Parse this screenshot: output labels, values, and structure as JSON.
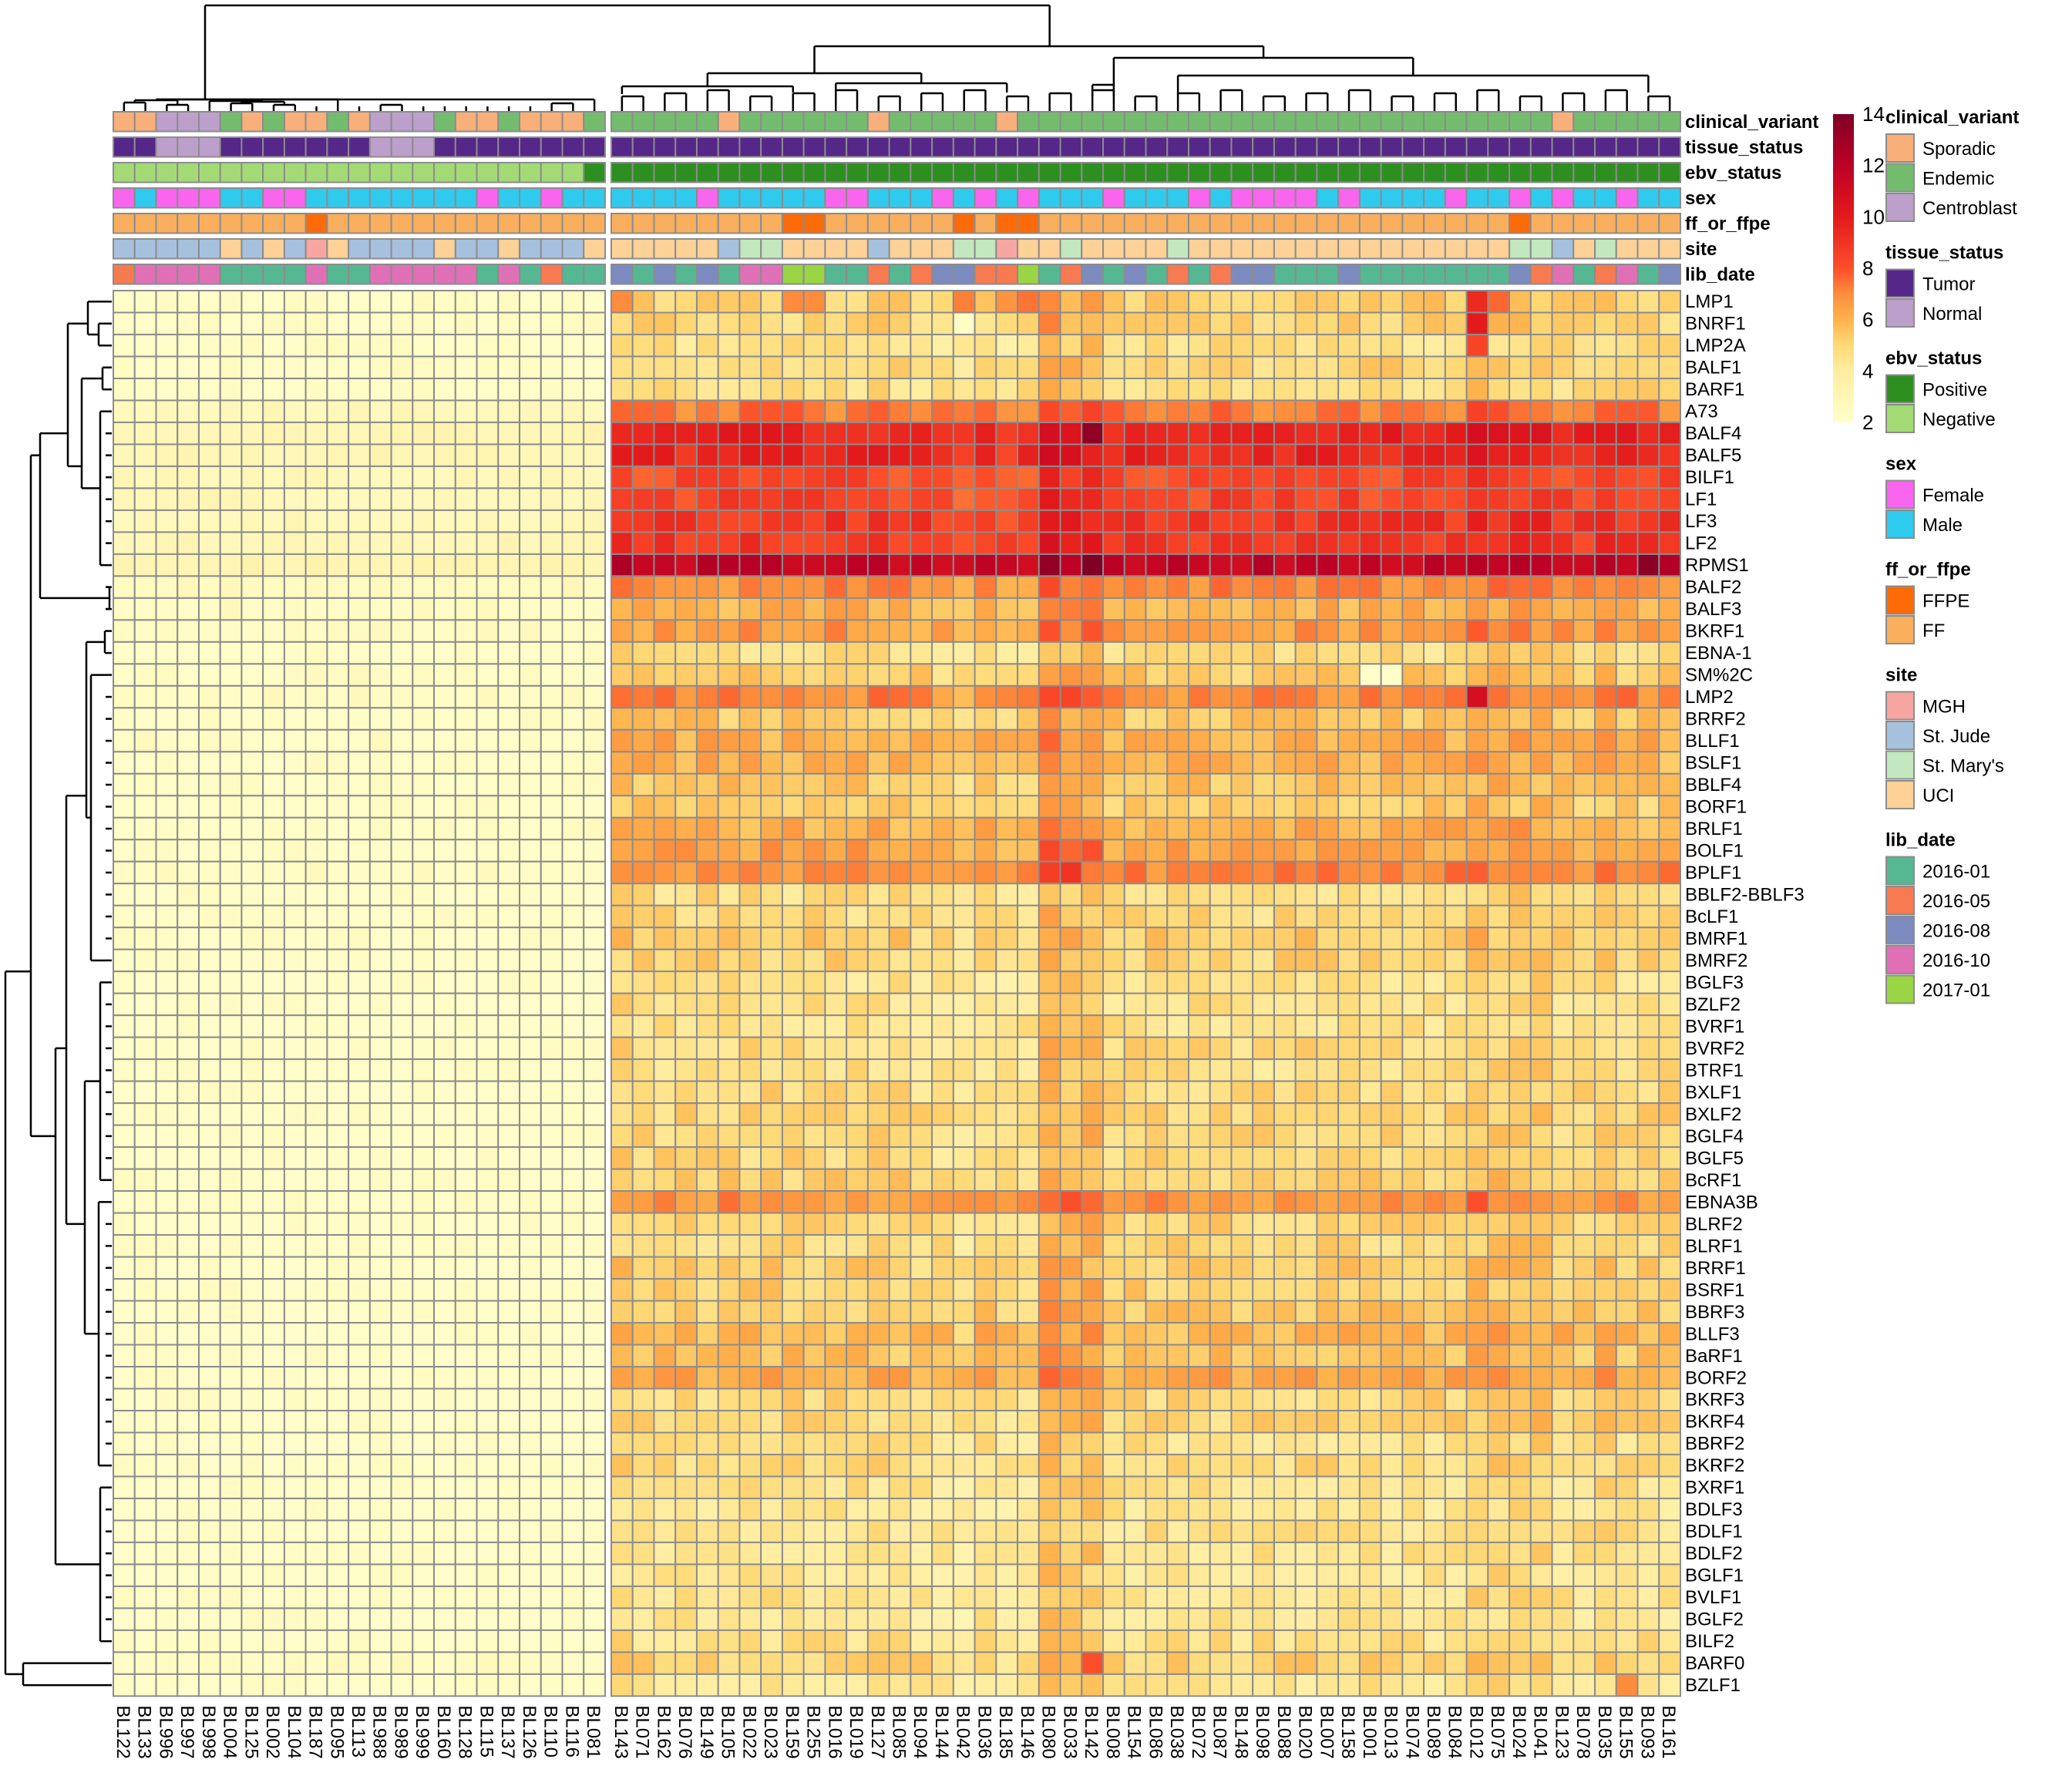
{
  "chart_data": {
    "type": "heatmap",
    "title": "",
    "color_scale": {
      "name": "YlOrRd",
      "min": 2,
      "max": 14,
      "ticks": [
        2,
        4,
        6,
        8,
        10,
        12,
        14
      ],
      "tick_labels": [
        "2",
        "4",
        "6",
        "8",
        "10",
        "12",
        "14"
      ],
      "stops": [
        {
          "v": 2,
          "c": "#FFFFCC"
        },
        {
          "v": 4,
          "c": "#FFEDA0"
        },
        {
          "v": 5,
          "c": "#FED976"
        },
        {
          "v": 6,
          "c": "#FEB24C"
        },
        {
          "v": 7,
          "c": "#FD8D3C"
        },
        {
          "v": 8,
          "c": "#FC4E2A"
        },
        {
          "v": 10,
          "c": "#E31A1C"
        },
        {
          "v": 12,
          "c": "#BD0026"
        },
        {
          "v": 14,
          "c": "#800026"
        }
      ]
    },
    "column_groups": [
      {
        "name": "left",
        "columns": [
          "BL122",
          "BL133",
          "BL996",
          "BL997",
          "BL998",
          "BL004",
          "BL125",
          "BL002",
          "BL104",
          "BL187",
          "BL095",
          "BL113",
          "BL988",
          "BL989",
          "BL999",
          "BL160",
          "BL128",
          "BL115",
          "BL137",
          "BL126",
          "BL110",
          "BL116",
          "BL081"
        ]
      },
      {
        "name": "right",
        "columns": [
          "BL143",
          "BL071",
          "BL162",
          "BL076",
          "BL149",
          "BL105",
          "BL022",
          "BL023",
          "BL159",
          "BL255",
          "BL016",
          "BL019",
          "BL127",
          "BL085",
          "BL094",
          "BL144",
          "BL042",
          "BL036",
          "BL185",
          "BL146",
          "BL080",
          "BL033",
          "BL142",
          "BL008",
          "BL154",
          "BL086",
          "BL038",
          "BL072",
          "BL087",
          "BL148",
          "BL098",
          "BL088",
          "BL020",
          "BL007",
          "BL158",
          "BL001",
          "BL013",
          "BL074",
          "BL089",
          "BL084",
          "BL012",
          "BL075",
          "BL024",
          "BL041",
          "BL123",
          "BL078",
          "BL035",
          "BL155",
          "BL093",
          "BL161"
        ]
      }
    ],
    "rows": [
      "LMP1",
      "BNRF1",
      "LMP2A",
      "BALF1",
      "BARF1",
      "A73",
      "BALF4",
      "BALF5",
      "BILF1",
      "LF1",
      "LF3",
      "LF2",
      "RPMS1",
      "BALF2",
      "BALF3",
      "BKRF1",
      "EBNA-1",
      "SM%2C",
      "LMP2",
      "BRRF2",
      "BLLF1",
      "BSLF1",
      "BBLF4",
      "BORF1",
      "BRLF1",
      "BOLF1",
      "BPLF1",
      "BBLF2-BBLF3",
      "BcLF1",
      "BMRF1",
      "BMRF2",
      "BGLF3",
      "BZLF2",
      "BVRF1",
      "BVRF2",
      "BTRF1",
      "BXLF1",
      "BXLF2",
      "BGLF4",
      "BGLF5",
      "BcRF1",
      "EBNA3B",
      "BLRF2",
      "BLRF1",
      "BRRF1",
      "BSRF1",
      "BBRF3",
      "BLLF3",
      "BaRF1",
      "BORF2",
      "BKRF3",
      "BKRF4",
      "BBRF2",
      "BKRF2",
      "BXRF1",
      "BDLF3",
      "BDLF1",
      "BDLF2",
      "BGLF1",
      "BVLF1",
      "BGLF2",
      "BILF2",
      "BARF0",
      "BZLF1"
    ],
    "row_base_right": [
      5.2,
      5.0,
      4.6,
      5.0,
      4.8,
      7.3,
      9.6,
      9.4,
      8.2,
      8.4,
      8.9,
      8.8,
      11.6,
      7.0,
      6.0,
      6.6,
      4.7,
      5.3,
      7.0,
      5.4,
      6.1,
      6.0,
      5.5,
      5.2,
      6.0,
      6.4,
      7.0,
      4.7,
      4.8,
      5.2,
      5.0,
      4.5,
      4.6,
      4.6,
      4.8,
      4.6,
      4.9,
      5.0,
      4.9,
      4.9,
      5.1,
      6.8,
      5.0,
      4.9,
      5.2,
      5.1,
      5.3,
      5.9,
      5.6,
      6.3,
      4.9,
      5.0,
      4.6,
      4.8,
      4.5,
      4.3,
      4.5,
      4.4,
      4.3,
      4.5,
      4.3,
      4.6,
      5.1,
      4.4
    ],
    "row_base_left": [
      2.2,
      2.2,
      2.2,
      2.2,
      2.2,
      2.7,
      2.9,
      2.9,
      2.7,
      2.7,
      2.7,
      2.8,
      3.1,
      2.5,
      2.3,
      2.3,
      2.2,
      2.2,
      2.3,
      2.2,
      2.2,
      2.2,
      2.2,
      2.2,
      2.2,
      2.2,
      2.3,
      2.1,
      2.1,
      2.1,
      2.1,
      2.1,
      2.1,
      2.1,
      2.1,
      2.1,
      2.1,
      2.1,
      2.1,
      2.1,
      2.1,
      2.2,
      2.1,
      2.1,
      2.1,
      2.1,
      2.1,
      2.1,
      2.1,
      2.1,
      2.1,
      2.1,
      2.1,
      2.1,
      2.1,
      2.1,
      2.1,
      2.1,
      2.1,
      2.1,
      2.1,
      2.1,
      2.3,
      2.1
    ],
    "highlights": [
      {
        "row": "LMP1",
        "column": "BL143",
        "value": 7.0
      },
      {
        "row": "LMP1",
        "column": "BL159",
        "value": 7.0
      },
      {
        "row": "LMP1",
        "column": "BL255",
        "value": 7.0
      },
      {
        "row": "LMP1",
        "column": "BL042",
        "value": 7.2
      },
      {
        "row": "LMP1",
        "column": "BL185",
        "value": 6.8
      },
      {
        "row": "LMP1",
        "column": "BL146",
        "value": 7.4
      },
      {
        "row": "LMP1",
        "column": "BL012",
        "value": 9.4
      },
      {
        "row": "LMP1",
        "column": "BL075",
        "value": 7.6
      },
      {
        "row": "BNRF1",
        "column": "BL012",
        "value": 10.0
      },
      {
        "row": "BNRF1",
        "column": "BL080",
        "value": 7.2
      },
      {
        "row": "BNRF1",
        "column": "BL042",
        "value": 2.3
      },
      {
        "row": "LMP2A",
        "column": "BL012",
        "value": 8.4
      },
      {
        "row": "BALF4",
        "column": "BL142",
        "value": 13.4
      },
      {
        "row": "RPMS1",
        "column": "BL142",
        "value": 14.0
      },
      {
        "row": "RPMS1",
        "column": "BL093",
        "value": 13.6
      },
      {
        "row": "LMP2",
        "column": "BL012",
        "value": 10.8
      },
      {
        "row": "LMP2",
        "column": "BL033",
        "value": 8.4
      },
      {
        "row": "BPLF1",
        "column": "BL033",
        "value": 9.0
      },
      {
        "row": "SM%2C",
        "column": "BL001",
        "value": 2.2
      },
      {
        "row": "SM%2C",
        "column": "BL013",
        "value": 2.2
      },
      {
        "row": "BARF0",
        "column": "BL142",
        "value": 8.0
      },
      {
        "row": "BZLF1",
        "column": "BL155",
        "value": 7.0
      },
      {
        "row": "LMP1",
        "column": "BL187",
        "value": 2.4
      }
    ],
    "xlabel": "",
    "ylabel": ""
  },
  "annotations": {
    "tracks": [
      "clinical_variant",
      "tissue_status",
      "ebv_status",
      "sex",
      "ff_or_ffpe",
      "site",
      "lib_date"
    ],
    "left": {
      "clinical_variant": [
        "Sporadic",
        "Sporadic",
        "Centroblast",
        "Centroblast",
        "Centroblast",
        "Endemic",
        "Sporadic",
        "Endemic",
        "Sporadic",
        "Sporadic",
        "Endemic",
        "Sporadic",
        "Centroblast",
        "Centroblast",
        "Centroblast",
        "Endemic",
        "Sporadic",
        "Sporadic",
        "Endemic",
        "Sporadic",
        "Sporadic",
        "Sporadic",
        "Endemic"
      ],
      "tissue_status": [
        "Tumor",
        "Tumor",
        "Normal",
        "Normal",
        "Normal",
        "Tumor",
        "Tumor",
        "Tumor",
        "Tumor",
        "Tumor",
        "Tumor",
        "Tumor",
        "Normal",
        "Normal",
        "Normal",
        "Tumor",
        "Tumor",
        "Tumor",
        "Tumor",
        "Tumor",
        "Tumor",
        "Tumor",
        "Tumor"
      ],
      "ebv_status": [
        "Negative",
        "Negative",
        "Negative",
        "Negative",
        "Negative",
        "Negative",
        "Negative",
        "Negative",
        "Negative",
        "Negative",
        "Negative",
        "Negative",
        "Negative",
        "Negative",
        "Negative",
        "Negative",
        "Negative",
        "Negative",
        "Negative",
        "Negative",
        "Negative",
        "Negative",
        "Positive"
      ],
      "sex": [
        "Female",
        "Male",
        "Female",
        "Female",
        "Female",
        "Male",
        "Male",
        "Female",
        "Female",
        "Male",
        "Male",
        "Male",
        "Male",
        "Male",
        "Male",
        "Male",
        "Male",
        "Female",
        "Male",
        "Male",
        "Female",
        "Male",
        "Male"
      ],
      "ff_or_ffpe": [
        "FF",
        "FF",
        "FF",
        "FF",
        "FF",
        "FF",
        "FF",
        "FF",
        "FF",
        "FFPE",
        "FF",
        "FF",
        "FF",
        "FF",
        "FF",
        "FF",
        "FF",
        "FF",
        "FF",
        "FF",
        "FF",
        "FF",
        "FF"
      ],
      "site": [
        "St. Jude",
        "St. Jude",
        "St. Jude",
        "St. Jude",
        "St. Jude",
        "UCI",
        "St. Jude",
        "UCI",
        "St. Jude",
        "MGH",
        "UCI",
        "St. Jude",
        "St. Jude",
        "St. Jude",
        "St. Jude",
        "UCI",
        "St. Jude",
        "St. Jude",
        "UCI",
        "St. Jude",
        "St. Jude",
        "St. Jude",
        "UCI"
      ],
      "lib_date": [
        "2016-05",
        "2016-10",
        "2016-10",
        "2016-10",
        "2016-10",
        "2016-01",
        "2016-01",
        "2016-01",
        "2016-01",
        "2016-10",
        "2016-01",
        "2016-01",
        "2016-10",
        "2016-10",
        "2016-10",
        "2016-10",
        "2016-10",
        "2016-01",
        "2016-10",
        "2016-01",
        "2016-05",
        "2016-01",
        "2016-01"
      ]
    },
    "right": {
      "clinical_variant": [
        "Endemic",
        "Endemic",
        "Endemic",
        "Endemic",
        "Endemic",
        "Sporadic",
        "Endemic",
        "Endemic",
        "Endemic",
        "Endemic",
        "Endemic",
        "Endemic",
        "Sporadic",
        "Endemic",
        "Endemic",
        "Endemic",
        "Endemic",
        "Endemic",
        "Sporadic",
        "Endemic",
        "Endemic",
        "Endemic",
        "Endemic",
        "Endemic",
        "Endemic",
        "Endemic",
        "Endemic",
        "Endemic",
        "Endemic",
        "Endemic",
        "Endemic",
        "Endemic",
        "Endemic",
        "Endemic",
        "Endemic",
        "Endemic",
        "Endemic",
        "Endemic",
        "Endemic",
        "Endemic",
        "Endemic",
        "Endemic",
        "Endemic",
        "Endemic",
        "Sporadic",
        "Endemic",
        "Endemic",
        "Endemic",
        "Endemic",
        "Endemic"
      ],
      "tissue_status": "Tumor",
      "ebv_status": "Positive",
      "sex": [
        "Male",
        "Male",
        "Male",
        "Male",
        "Female",
        "Male",
        "Male",
        "Male",
        "Male",
        "Male",
        "Female",
        "Female",
        "Male",
        "Male",
        "Male",
        "Female",
        "Male",
        "Female",
        "Male",
        "Female",
        "Male",
        "Male",
        "Male",
        "Female",
        "Male",
        "Male",
        "Male",
        "Female",
        "Male",
        "Female",
        "Female",
        "Female",
        "Female",
        "Male",
        "Female",
        "Male",
        "Male",
        "Male",
        "Male",
        "Female",
        "Male",
        "Male",
        "Female",
        "Male",
        "Female",
        "Male",
        "Male",
        "Female",
        "Male",
        "Male"
      ],
      "ff_or_ffpe": [
        "FF",
        "FF",
        "FF",
        "FF",
        "FF",
        "FF",
        "FF",
        "FF",
        "FFPE",
        "FFPE",
        "FF",
        "FF",
        "FF",
        "FF",
        "FF",
        "FF",
        "FFPE",
        "FF",
        "FFPE",
        "FFPE",
        "FF",
        "FF",
        "FF",
        "FF",
        "FF",
        "FF",
        "FF",
        "FF",
        "FF",
        "FF",
        "FF",
        "FF",
        "FF",
        "FF",
        "FF",
        "FF",
        "FF",
        "FF",
        "FF",
        "FF",
        "FF",
        "FF",
        "FFPE",
        "FF",
        "FF",
        "FF",
        "FF",
        "FF",
        "FF",
        "FF"
      ],
      "site": [
        "UCI",
        "UCI",
        "UCI",
        "UCI",
        "UCI",
        "St. Jude",
        "St. Mary's",
        "St. Mary's",
        "UCI",
        "UCI",
        "UCI",
        "UCI",
        "St. Jude",
        "UCI",
        "UCI",
        "UCI",
        "St. Mary's",
        "St. Mary's",
        "MGH",
        "UCI",
        "UCI",
        "St. Mary's",
        "UCI",
        "UCI",
        "UCI",
        "UCI",
        "St. Mary's",
        "UCI",
        "UCI",
        "UCI",
        "UCI",
        "UCI",
        "UCI",
        "UCI",
        "UCI",
        "UCI",
        "UCI",
        "UCI",
        "UCI",
        "UCI",
        "UCI",
        "UCI",
        "St. Mary's",
        "St. Mary's",
        "St. Jude",
        "UCI",
        "St. Mary's",
        "UCI",
        "UCI",
        "UCI"
      ],
      "lib_date": [
        "2016-08",
        "2016-01",
        "2016-08",
        "2016-01",
        "2016-08",
        "2016-01",
        "2016-10",
        "2016-10",
        "2017-01",
        "2017-01",
        "2016-01",
        "2016-01",
        "2016-05",
        "2016-01",
        "2016-05",
        "2016-08",
        "2016-08",
        "2016-05",
        "2016-05",
        "2017-01",
        "2016-01",
        "2016-05",
        "2016-08",
        "2016-01",
        "2016-08",
        "2016-01",
        "2016-05",
        "2016-01",
        "2016-05",
        "2016-08",
        "2016-08",
        "2016-01",
        "2016-01",
        "2016-01",
        "2016-08",
        "2016-01",
        "2016-01",
        "2016-01",
        "2016-01",
        "2016-01",
        "2016-01",
        "2016-01",
        "2016-08",
        "2016-05",
        "2016-10",
        "2016-01",
        "2016-05",
        "2016-10",
        "2016-01",
        "2016-08"
      ]
    }
  },
  "legends": [
    {
      "title": "clinical_variant",
      "items": [
        {
          "label": "Sporadic",
          "color": "#F8AF7A"
        },
        {
          "label": "Endemic",
          "color": "#73BC6E"
        },
        {
          "label": "Centroblast",
          "color": "#BC9FCB"
        }
      ]
    },
    {
      "title": "tissue_status",
      "items": [
        {
          "label": "Tumor",
          "color": "#542788"
        },
        {
          "label": "Normal",
          "color": "#BC9FCB"
        }
      ]
    },
    {
      "title": "ebv_status",
      "items": [
        {
          "label": "Positive",
          "color": "#2E8F21"
        },
        {
          "label": "Negative",
          "color": "#A4DA76"
        }
      ]
    },
    {
      "title": "sex",
      "items": [
        {
          "label": "Female",
          "color": "#F965EE"
        },
        {
          "label": "Male",
          "color": "#2ECBEE"
        }
      ]
    },
    {
      "title": "ff_or_ffpe",
      "items": [
        {
          "label": "FFPE",
          "color": "#FD6A08"
        },
        {
          "label": "FF",
          "color": "#F9AF5D"
        }
      ]
    },
    {
      "title": "site",
      "items": [
        {
          "label": "MGH",
          "color": "#F7A5A0"
        },
        {
          "label": "St. Jude",
          "color": "#A6C1DE"
        },
        {
          "label": "St. Mary's",
          "color": "#C3E7BE"
        },
        {
          "label": "UCI",
          "color": "#FED197"
        }
      ]
    },
    {
      "title": "lib_date",
      "items": [
        {
          "label": "2016-01",
          "color": "#55B893"
        },
        {
          "label": "2016-05",
          "color": "#F87A51"
        },
        {
          "label": "2016-08",
          "color": "#7C8BBF"
        },
        {
          "label": "2016-10",
          "color": "#E070B6"
        },
        {
          "label": "2017-01",
          "color": "#99D544"
        }
      ]
    }
  ]
}
